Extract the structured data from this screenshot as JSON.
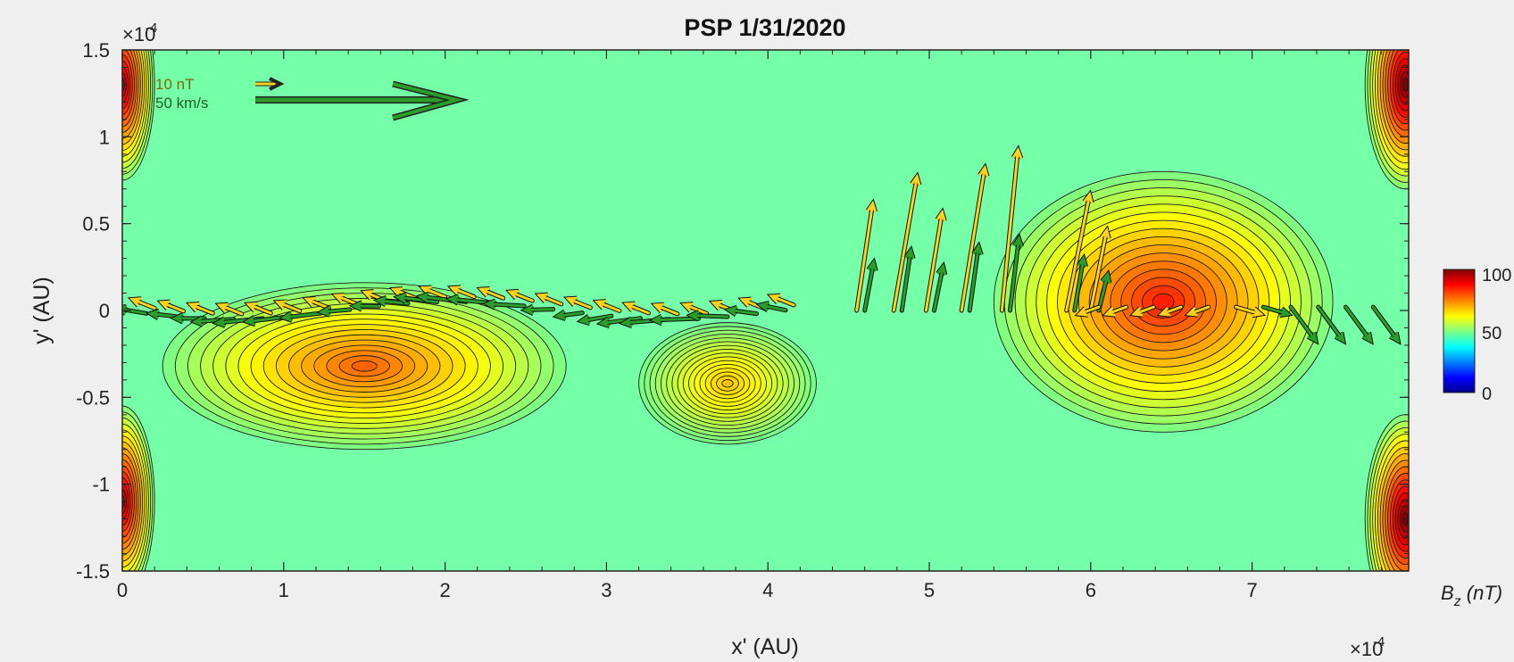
{
  "chart_data": {
    "type": "contour",
    "title": "PSP 1/31/2020",
    "xlabel": "x' (AU)",
    "ylabel": "y' (AU)",
    "x_exponent": "×10",
    "x_exponent_power": "-4",
    "y_exponent": "×10",
    "y_exponent_power": "-4",
    "xlim": [
      0,
      7.97
    ],
    "ylim": [
      -1.5,
      1.5
    ],
    "xticks": [
      "0",
      "1",
      "2",
      "3",
      "4",
      "5",
      "6",
      "7"
    ],
    "yticks": [
      "1.5",
      "1",
      "0.5",
      "0",
      "-0.5",
      "-1",
      "-1.5"
    ],
    "colorbar": {
      "label": "B",
      "label_sub": "z",
      "label_unit": " (nT)",
      "ticks": [
        "100",
        "50",
        "0"
      ],
      "range": [
        0,
        100
      ],
      "colors": [
        "#00008f",
        "#0000ff",
        "#00ffff",
        "#80ff80",
        "#ffff00",
        "#ff8000",
        "#ff0000",
        "#800000"
      ]
    },
    "scale_arrows": [
      {
        "label": "10 nT",
        "color": "#ffd21f"
      },
      {
        "label": "50 km/s",
        "color": "#2a9d2a"
      }
    ],
    "field_maxima": [
      {
        "x": 1.5,
        "y": -0.32,
        "bz": 78
      },
      {
        "x": 3.75,
        "y": -0.42,
        "bz": 68
      },
      {
        "x": 6.45,
        "y": 0.05,
        "bz": 85
      }
    ],
    "edge_maxima": [
      {
        "x": 0.0,
        "y": 1.3,
        "bz": 95
      },
      {
        "x": 0.0,
        "y": -1.1,
        "bz": 95
      },
      {
        "x": 7.95,
        "y": 1.3,
        "bz": 100
      },
      {
        "x": 7.95,
        "y": -1.2,
        "bz": 100
      }
    ],
    "background_bz": 48,
    "grid": false
  }
}
